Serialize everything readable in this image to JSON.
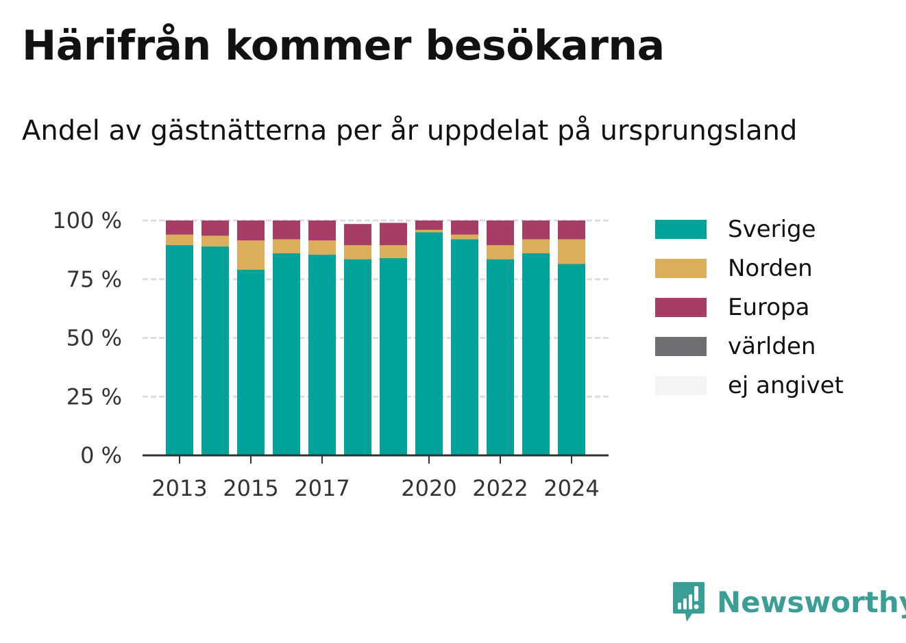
{
  "header": {
    "title": "Härifrån kommer besökarna",
    "subtitle": "Andel av gästnätterna per år uppdelat på ursprungsland"
  },
  "brand": {
    "name": "Newsworthy",
    "color": "#3a9e96",
    "icon": "bar-chart-speech-bubble-icon"
  },
  "chart_data": {
    "type": "bar",
    "stacked": true,
    "categories": [
      "2013",
      "2014",
      "2015",
      "2016",
      "2017",
      "2018",
      "2019",
      "2020",
      "2021",
      "2022",
      "2023",
      "2024"
    ],
    "x_tick_labels": [
      "2013",
      "",
      "2015",
      "",
      "2017",
      "",
      "",
      "2020",
      "",
      "2022",
      "",
      "2024"
    ],
    "y_tick_labels": [
      "0 %",
      "25 %",
      "50 %",
      "75 %",
      "100 %"
    ],
    "y_ticks": [
      0,
      25,
      50,
      75,
      100
    ],
    "ylim": [
      0,
      100
    ],
    "grid": true,
    "legend_position": "right",
    "series": [
      {
        "name": "Sverige",
        "color": "#00a29a",
        "values": [
          89.5,
          89,
          79,
          86,
          85.5,
          83.5,
          84,
          95,
          92,
          83.5,
          86,
          81.5
        ]
      },
      {
        "name": "Norden",
        "color": "#dcad5a",
        "values": [
          4.5,
          4.5,
          12.5,
          6,
          6,
          6,
          5.5,
          1,
          2,
          6,
          6,
          10.5
        ]
      },
      {
        "name": "Europa",
        "color": "#a63d66",
        "values": [
          6,
          6.5,
          8.5,
          8,
          8.5,
          9,
          9.5,
          4,
          6,
          10.5,
          8,
          8
        ]
      },
      {
        "name": "världen",
        "color": "#6e6e73",
        "values": [
          0,
          0,
          0,
          0,
          0,
          0,
          0,
          0,
          0,
          0,
          0,
          0
        ]
      },
      {
        "name": "ej angivet",
        "color": "#f4f4f2",
        "values": [
          0,
          0,
          0,
          0,
          0,
          0,
          0,
          0,
          0,
          0,
          0,
          0
        ]
      }
    ]
  }
}
